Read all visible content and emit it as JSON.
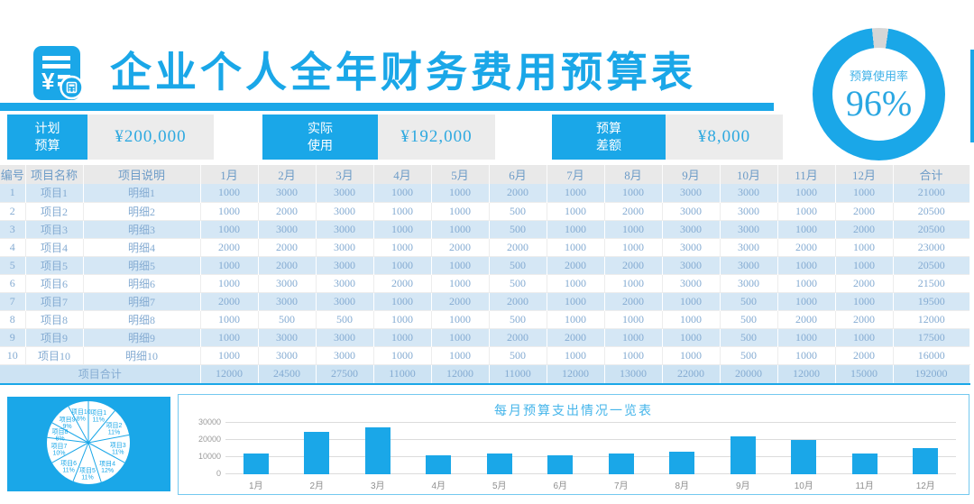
{
  "header": {
    "title": "企业个人全年财务费用预算表",
    "icon": "invoice-calculator-icon"
  },
  "summary": {
    "planned": {
      "label": "计划\n预算",
      "value": "¥200,000"
    },
    "actual": {
      "label": "实际\n使用",
      "value": "¥192,000"
    },
    "difference": {
      "label": "预算\n差额",
      "value": "¥8,000"
    }
  },
  "gauge": {
    "label": "预算使用率",
    "value": "96%",
    "percent_used": 96
  },
  "table": {
    "columns": [
      "编号",
      "项目名称",
      "项目说明",
      "1月",
      "2月",
      "3月",
      "4月",
      "5月",
      "6月",
      "7月",
      "8月",
      "9月",
      "10月",
      "11月",
      "12月",
      "合计"
    ],
    "rows": [
      {
        "no": "1",
        "name": "项目1",
        "desc": "明细1",
        "months": [
          1000,
          3000,
          3000,
          1000,
          1000,
          2000,
          1000,
          1000,
          3000,
          3000,
          1000,
          1000
        ],
        "total": 21000
      },
      {
        "no": "2",
        "name": "项目2",
        "desc": "明细2",
        "months": [
          1000,
          2000,
          3000,
          1000,
          1000,
          500,
          1000,
          2000,
          3000,
          3000,
          1000,
          2000
        ],
        "total": 20500
      },
      {
        "no": "3",
        "name": "项目3",
        "desc": "明细3",
        "months": [
          1000,
          3000,
          3000,
          1000,
          1000,
          500,
          1000,
          1000,
          3000,
          3000,
          1000,
          2000
        ],
        "total": 20500
      },
      {
        "no": "4",
        "name": "项目4",
        "desc": "明细4",
        "months": [
          2000,
          2000,
          3000,
          1000,
          2000,
          2000,
          1000,
          1000,
          3000,
          3000,
          2000,
          1000
        ],
        "total": 23000
      },
      {
        "no": "5",
        "name": "项目5",
        "desc": "明细5",
        "months": [
          1000,
          2000,
          3000,
          1000,
          1000,
          500,
          2000,
          2000,
          3000,
          3000,
          1000,
          1000
        ],
        "total": 20500
      },
      {
        "no": "6",
        "name": "项目6",
        "desc": "明细6",
        "months": [
          1000,
          3000,
          3000,
          2000,
          1000,
          500,
          1000,
          1000,
          3000,
          3000,
          1000,
          2000
        ],
        "total": 21500
      },
      {
        "no": "7",
        "name": "项目7",
        "desc": "明细7",
        "months": [
          2000,
          3000,
          3000,
          1000,
          2000,
          2000,
          1000,
          2000,
          1000,
          500,
          1000,
          1000
        ],
        "total": 19500
      },
      {
        "no": "8",
        "name": "项目8",
        "desc": "明细8",
        "months": [
          1000,
          500,
          500,
          1000,
          1000,
          500,
          1000,
          1000,
          1000,
          500,
          2000,
          2000
        ],
        "total": 12000
      },
      {
        "no": "9",
        "name": "项目9",
        "desc": "明细9",
        "months": [
          1000,
          3000,
          3000,
          1000,
          1000,
          2000,
          2000,
          1000,
          1000,
          500,
          1000,
          1000
        ],
        "total": 17500
      },
      {
        "no": "10",
        "name": "项目10",
        "desc": "明细10",
        "months": [
          1000,
          3000,
          3000,
          1000,
          1000,
          500,
          1000,
          1000,
          1000,
          500,
          1000,
          2000
        ],
        "total": 16000
      }
    ],
    "total_row": {
      "label": "项目合计",
      "months": [
        12000,
        24500,
        27500,
        11000,
        12000,
        11000,
        12000,
        13000,
        22000,
        20000,
        12000,
        15000
      ],
      "total": 192000
    }
  },
  "chart_data": [
    {
      "type": "pie",
      "title": "",
      "categories": [
        "项目1",
        "项目2",
        "项目3",
        "项目4",
        "项目5",
        "项目6",
        "项目7",
        "项目8",
        "项目9",
        "项目10"
      ],
      "values": [
        11,
        11,
        11,
        12,
        11,
        11,
        10,
        6,
        9,
        8
      ],
      "unit": "%",
      "label_format": "name + percent inside white slices on blue panel"
    },
    {
      "type": "bar",
      "title": "每月预算支出情况一览表",
      "categories": [
        "1月",
        "2月",
        "3月",
        "4月",
        "5月",
        "6月",
        "7月",
        "8月",
        "9月",
        "10月",
        "11月",
        "12月"
      ],
      "values": [
        12000,
        24500,
        27500,
        11000,
        12000,
        11000,
        12000,
        13000,
        22000,
        20000,
        12000,
        15000
      ],
      "xlabel": "",
      "ylabel": "",
      "yticks": [
        0,
        10000,
        20000,
        30000
      ],
      "ylim": [
        0,
        30000
      ],
      "grid": true,
      "legend": false,
      "bar_color": "#1aa7e8"
    },
    {
      "type": "donut",
      "title": "预算使用率",
      "values": [
        96,
        4
      ],
      "center_value": "96%",
      "used_color": "#1aa7e8",
      "rest_color": "#d6d6d6"
    }
  ],
  "colors": {
    "primary": "#1aa7e8",
    "row_alt": "#d5e7f5",
    "header_gray": "#e9e9e9",
    "value_box_gray": "#ececec",
    "donut_rest": "#d6d6d6"
  }
}
